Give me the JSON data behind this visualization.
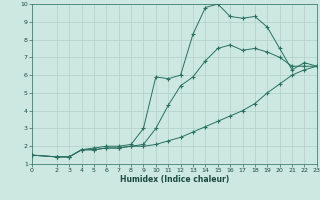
{
  "xlabel": "Humidex (Indice chaleur)",
  "background_color": "#cce8e0",
  "grid_color": "#b0d0c8",
  "line_color": "#2a7060",
  "xlim": [
    0,
    23
  ],
  "ylim": [
    1,
    10
  ],
  "xticks": [
    0,
    2,
    3,
    4,
    5,
    6,
    7,
    8,
    9,
    10,
    11,
    12,
    13,
    14,
    15,
    16,
    17,
    18,
    19,
    20,
    21,
    22,
    23
  ],
  "yticks": [
    1,
    2,
    3,
    4,
    5,
    6,
    7,
    8,
    9,
    10
  ],
  "series": [
    {
      "x": [
        0,
        2,
        3,
        4,
        5,
        6,
        7,
        8,
        9,
        10,
        11,
        12,
        13,
        14,
        15,
        16,
        17,
        18,
        19,
        20,
        21,
        22,
        23
      ],
      "y": [
        1.5,
        1.4,
        1.4,
        1.8,
        1.8,
        1.9,
        1.9,
        2.0,
        2.0,
        2.1,
        2.3,
        2.5,
        2.8,
        3.1,
        3.4,
        3.7,
        4.0,
        4.4,
        5.0,
        5.5,
        6.0,
        6.3,
        6.5
      ]
    },
    {
      "x": [
        0,
        2,
        3,
        4,
        5,
        6,
        7,
        8,
        9,
        10,
        11,
        12,
        13,
        14,
        15,
        16,
        17,
        18,
        19,
        20,
        21,
        22,
        23
      ],
      "y": [
        1.5,
        1.4,
        1.4,
        1.8,
        1.9,
        2.0,
        2.0,
        2.1,
        3.0,
        5.9,
        5.8,
        6.0,
        8.3,
        9.8,
        10.0,
        9.3,
        9.2,
        9.3,
        8.7,
        7.5,
        6.3,
        6.7,
        6.5
      ]
    },
    {
      "x": [
        0,
        2,
        3,
        4,
        5,
        6,
        7,
        8,
        9,
        10,
        11,
        12,
        13,
        14,
        15,
        16,
        17,
        18,
        19,
        20,
        21,
        22,
        23
      ],
      "y": [
        1.5,
        1.4,
        1.4,
        1.8,
        1.8,
        1.9,
        1.9,
        2.0,
        2.1,
        3.0,
        4.3,
        5.4,
        5.9,
        6.8,
        7.5,
        7.7,
        7.4,
        7.5,
        7.3,
        7.0,
        6.5,
        6.5,
        6.5
      ]
    }
  ]
}
